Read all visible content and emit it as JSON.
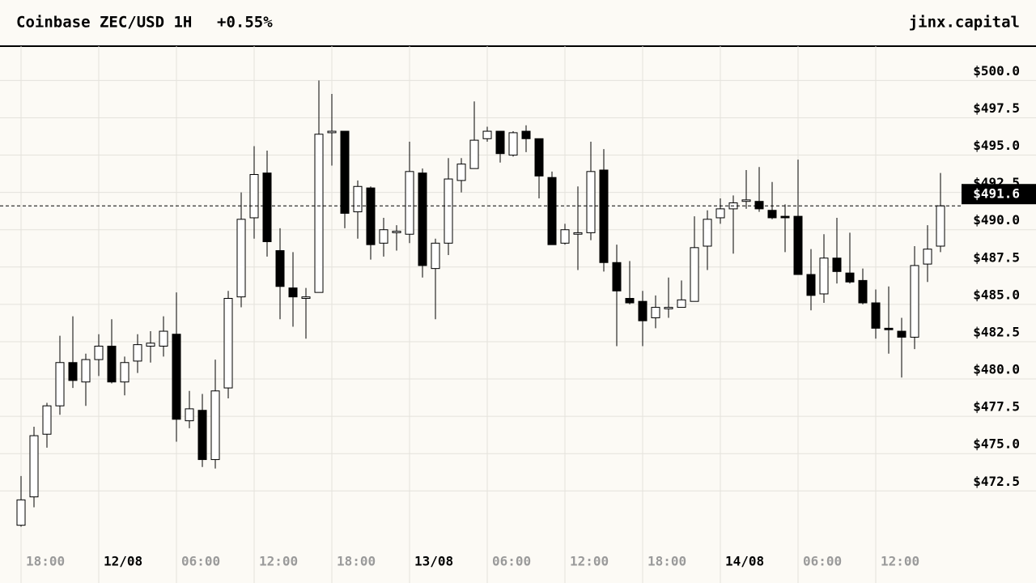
{
  "chart_data": {
    "type": "candlestick",
    "title": "Coinbase ZEC/USD 1H",
    "change": "+0.55%",
    "brand": "jinx.capital",
    "categories": [
      "18:00",
      null,
      null,
      null,
      null,
      null,
      "12/08",
      null,
      null,
      null,
      null,
      null,
      "06:00",
      null,
      null,
      null,
      null,
      null,
      "12:00",
      null,
      null,
      null,
      null,
      null,
      "18:00",
      null,
      null,
      null,
      null,
      null,
      "13/08",
      null,
      null,
      null,
      null,
      null,
      "06:00",
      null,
      null,
      null,
      null,
      null,
      "12:00",
      null,
      null,
      null,
      null,
      null,
      "18:00",
      null,
      null,
      null,
      null,
      null,
      "14/08",
      null,
      null,
      null,
      null,
      null,
      "06:00",
      null,
      null,
      null,
      null,
      null,
      "12:00",
      null,
      null,
      null,
      null,
      null
    ],
    "open": [
      470.2,
      472.1,
      476.3,
      478.2,
      481.1,
      479.8,
      481.3,
      482.2,
      479.8,
      481.2,
      482.2,
      482.2,
      483.0,
      477.2,
      477.9,
      474.6,
      479.4,
      485.5,
      490.8,
      493.8,
      488.6,
      486.1,
      485.4,
      485.8,
      496.5,
      496.6,
      491.2,
      492.8,
      489.1,
      489.8,
      489.7,
      493.8,
      487.4,
      489.1,
      493.3,
      494.1,
      496.1,
      496.6,
      495.0,
      496.6,
      496.1,
      493.5,
      489.1,
      489.7,
      489.8,
      494.0,
      487.8,
      485.4,
      485.2,
      484.1,
      484.7,
      484.8,
      485.2,
      488.9,
      490.8,
      491.4,
      491.9,
      491.9,
      491.3,
      490.9,
      490.9,
      487.0,
      485.7,
      488.1,
      487.1,
      486.6,
      485.1,
      483.4,
      483.2,
      482.8,
      487.7,
      488.9
    ],
    "high": [
      473.5,
      476.8,
      478.4,
      482.9,
      484.2,
      481.7,
      483.0,
      484.0,
      481.5,
      483.0,
      483.2,
      484.2,
      485.8,
      479.2,
      479.0,
      481.3,
      485.9,
      492.5,
      495.6,
      495.3,
      490.1,
      488.5,
      486.1,
      500.0,
      499.1,
      496.6,
      493.3,
      492.9,
      490.8,
      490.3,
      495.9,
      494.1,
      489.4,
      494.8,
      494.8,
      498.6,
      496.9,
      496.6,
      496.6,
      497.0,
      496.1,
      493.9,
      490.4,
      492.9,
      495.9,
      495.4,
      489.0,
      487.9,
      485.9,
      485.6,
      486.8,
      486.6,
      490.9,
      491.3,
      492.1,
      492.3,
      494.0,
      494.2,
      493.2,
      491.7,
      494.7,
      488.7,
      489.7,
      490.8,
      489.8,
      487.4,
      486.0,
      486.2,
      484.1,
      488.9,
      490.3,
      493.8
    ],
    "low": [
      470.1,
      471.4,
      475.4,
      477.6,
      479.4,
      478.2,
      480.2,
      479.7,
      478.9,
      480.4,
      481.1,
      481.5,
      475.8,
      476.7,
      474.1,
      474.0,
      478.7,
      484.8,
      489.4,
      488.2,
      484.0,
      483.5,
      482.7,
      485.8,
      494.3,
      490.1,
      489.4,
      488.0,
      488.2,
      488.6,
      489.1,
      486.8,
      484.0,
      488.3,
      492.5,
      494.1,
      495.9,
      494.5,
      494.9,
      495.2,
      492.1,
      489.0,
      489.0,
      487.3,
      489.3,
      487.2,
      482.2,
      485.0,
      482.2,
      483.4,
      484.1,
      484.8,
      485.2,
      487.3,
      490.4,
      488.4,
      491.4,
      491.2,
      490.7,
      488.5,
      487.0,
      484.6,
      485.1,
      486.4,
      486.4,
      485.0,
      482.7,
      481.7,
      480.1,
      482.0,
      486.5,
      488.5
    ],
    "close": [
      471.9,
      476.2,
      478.2,
      481.1,
      479.9,
      481.3,
      482.2,
      479.8,
      481.1,
      482.3,
      482.4,
      483.2,
      477.3,
      478.0,
      474.6,
      479.2,
      485.4,
      490.7,
      493.7,
      489.2,
      486.2,
      485.5,
      485.5,
      496.4,
      496.6,
      491.1,
      492.9,
      489.0,
      490.0,
      489.9,
      493.9,
      487.6,
      489.1,
      493.4,
      494.4,
      496.0,
      496.6,
      495.1,
      496.5,
      496.1,
      493.6,
      489.0,
      490.0,
      489.8,
      493.9,
      487.8,
      485.9,
      485.1,
      483.9,
      484.8,
      484.8,
      485.3,
      488.8,
      490.7,
      491.4,
      491.8,
      492.0,
      491.4,
      490.8,
      490.8,
      487.0,
      485.6,
      488.1,
      487.2,
      486.5,
      485.1,
      483.4,
      483.3,
      482.8,
      487.6,
      488.7,
      491.6
    ],
    "up_color": "#ffffff",
    "down_color": "#000000",
    "last_price": {
      "value": 491.6,
      "label": "$491.6"
    },
    "ylim": [
      468.5,
      502.3
    ],
    "yticks": [
      {
        "value": 472.5,
        "label": "$472.5"
      },
      {
        "value": 475.0,
        "label": "$475.0"
      },
      {
        "value": 477.5,
        "label": "$477.5"
      },
      {
        "value": 480.0,
        "label": "$480.0"
      },
      {
        "value": 482.5,
        "label": "$482.5"
      },
      {
        "value": 485.0,
        "label": "$485.0"
      },
      {
        "value": 487.5,
        "label": "$487.5"
      },
      {
        "value": 490.0,
        "label": "$490.0"
      },
      {
        "value": 492.5,
        "label": "$492.5"
      },
      {
        "value": 495.0,
        "label": "$495.0"
      },
      {
        "value": 497.5,
        "label": "$497.5"
      },
      {
        "value": 500.0,
        "label": "$500.0"
      }
    ],
    "grid": true
  }
}
